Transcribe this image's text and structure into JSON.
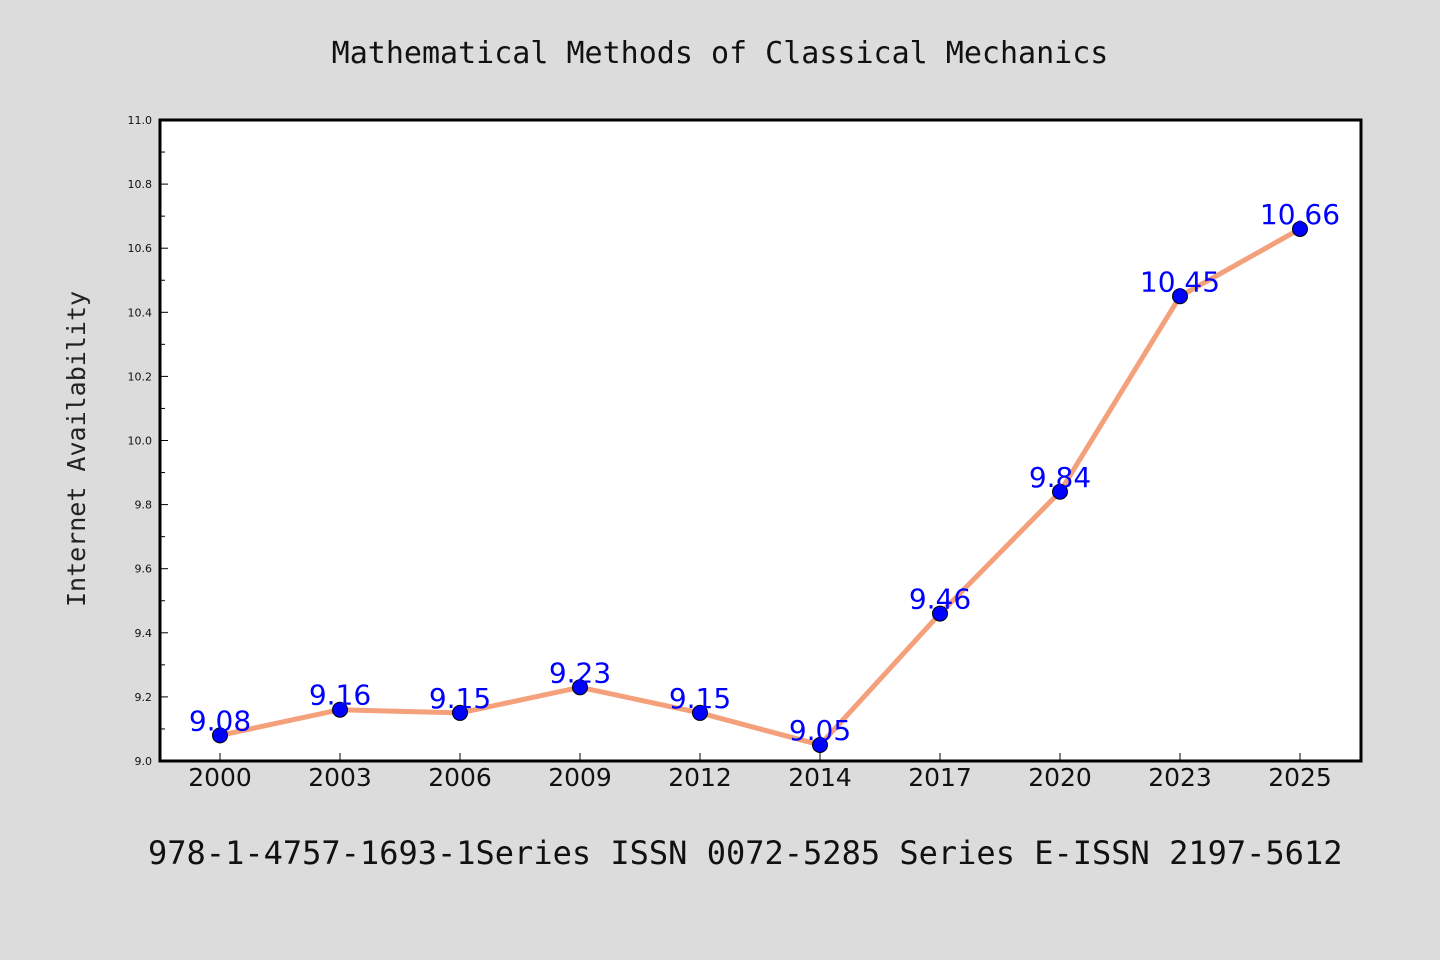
{
  "chart_data": {
    "type": "line",
    "title": "Mathematical Methods of Classical Mechanics",
    "xlabel": "",
    "ylabel": "Internet Availability",
    "categories": [
      "2000",
      "2003",
      "2006",
      "2009",
      "2012",
      "2014",
      "2017",
      "2020",
      "2023",
      "2025"
    ],
    "series": [
      {
        "values": [
          9.08,
          9.16,
          9.15,
          9.23,
          9.15,
          9.05,
          9.46,
          9.84,
          10.45,
          10.66
        ],
        "labels": [
          "9.08",
          "9.16",
          "9.15",
          "9.23",
          "9.15",
          "9.05",
          "9.46",
          "9.84",
          "10.45",
          "10.66"
        ],
        "line_color": "#f4a07a",
        "marker_color": "#0000ff"
      }
    ],
    "ylim": [
      9.0,
      11.0
    ],
    "yticks": [
      "9.0",
      "9.2",
      "9.4",
      "9.6",
      "9.8",
      "10.0",
      "10.2",
      "10.4",
      "10.6",
      "10.8",
      "11.0"
    ],
    "grid": false,
    "legend": "none",
    "footer": "978-1-4757-1693-1Series ISSN 0072-5285 Series E-ISSN 2197-5612"
  },
  "colors": {
    "background": "#dcdcdc",
    "plot_background": "#ffffff",
    "line": "#f4a07a",
    "marker": "#0000ff",
    "data_label": "#0000ff"
  }
}
